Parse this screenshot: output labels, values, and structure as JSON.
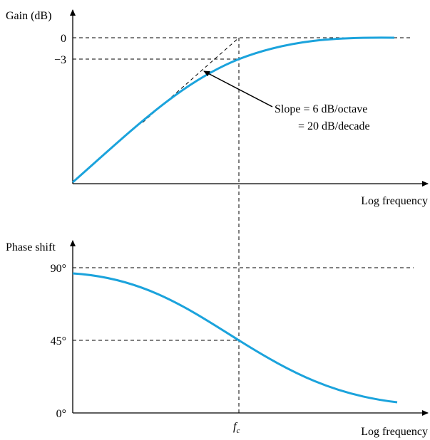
{
  "top": {
    "y_label": "Gain (dB)",
    "ticks": [
      "0",
      "−3"
    ],
    "x_label": "Log frequency",
    "annotation": [
      "Slope = 6 dB/octave",
      "= 20 dB/decade"
    ]
  },
  "bottom": {
    "y_label": "Phase shift",
    "ticks": [
      "90°",
      "45°",
      "0°"
    ],
    "x_label": "Log frequency",
    "marker": "f",
    "marker_sub": "c"
  }
}
